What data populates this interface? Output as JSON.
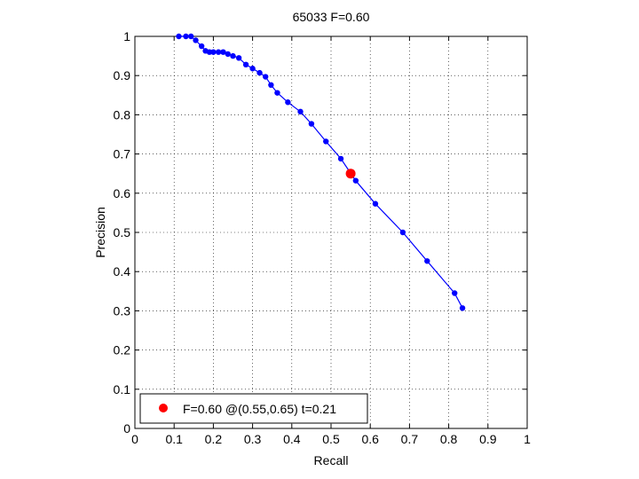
{
  "chart_data": {
    "type": "line",
    "title": "65033 F=0.60",
    "xlabel": "Recall",
    "ylabel": "Precision",
    "xlim": [
      0,
      1
    ],
    "ylim": [
      0,
      1
    ],
    "xticks": [
      "0",
      "0.1",
      "0.2",
      "0.3",
      "0.4",
      "0.5",
      "0.6",
      "0.7",
      "0.8",
      "0.9",
      "1"
    ],
    "yticks": [
      "0",
      "0.1",
      "0.2",
      "0.3",
      "0.4",
      "0.5",
      "0.6",
      "0.7",
      "0.8",
      "0.9",
      "1"
    ],
    "grid": true,
    "legend_position": "bottom-left",
    "series": [
      {
        "color": "#0000ff",
        "marker": "dot",
        "points": [
          [
            0.112,
            1.0
          ],
          [
            0.13,
            1.0
          ],
          [
            0.143,
            1.0
          ],
          [
            0.155,
            0.99
          ],
          [
            0.17,
            0.975
          ],
          [
            0.18,
            0.963
          ],
          [
            0.19,
            0.96
          ],
          [
            0.2,
            0.96
          ],
          [
            0.213,
            0.96
          ],
          [
            0.225,
            0.96
          ],
          [
            0.237,
            0.955
          ],
          [
            0.25,
            0.95
          ],
          [
            0.265,
            0.945
          ],
          [
            0.283,
            0.928
          ],
          [
            0.3,
            0.918
          ],
          [
            0.318,
            0.907
          ],
          [
            0.333,
            0.897
          ],
          [
            0.347,
            0.876
          ],
          [
            0.363,
            0.856
          ],
          [
            0.39,
            0.832
          ],
          [
            0.422,
            0.808
          ],
          [
            0.45,
            0.777
          ],
          [
            0.487,
            0.732
          ],
          [
            0.525,
            0.688
          ],
          [
            0.563,
            0.632
          ],
          [
            0.613,
            0.573
          ],
          [
            0.683,
            0.5
          ],
          [
            0.745,
            0.427
          ],
          [
            0.815,
            0.345
          ],
          [
            0.835,
            0.307
          ]
        ]
      }
    ],
    "highlight": {
      "x": 0.55,
      "y": 0.65,
      "color": "#ff0000",
      "label": "F=0.60 @(0.55,0.65) t=0.21"
    }
  }
}
